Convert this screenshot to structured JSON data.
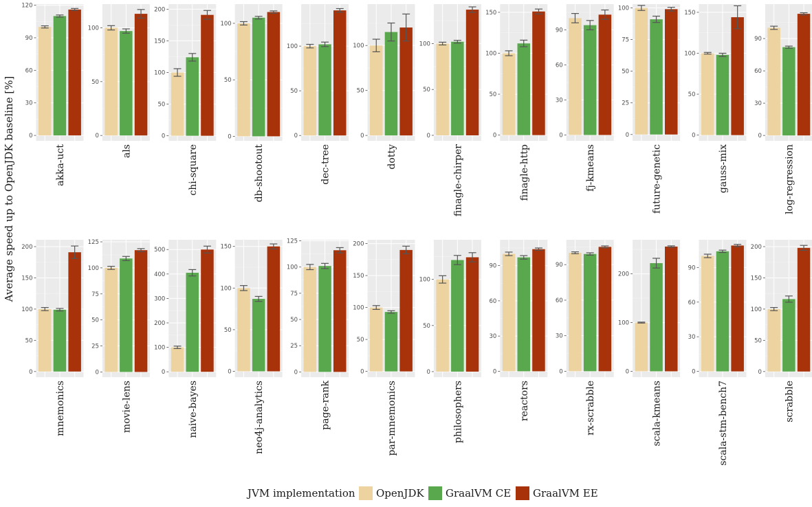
{
  "chart_data": {
    "type": "bar",
    "ylabel": "Average speed up to OpenJDK baseline [%]",
    "series": [
      {
        "name": "OpenJDK",
        "color": "#ecd3a0"
      },
      {
        "name": "GraalVM CE",
        "color": "#5aa84e"
      },
      {
        "name": "GraalVM EE",
        "color": "#a8320a"
      }
    ],
    "legend": {
      "title": "JVM implementation",
      "position": "bottom"
    },
    "grid": true,
    "panels": [
      {
        "name": "akka-uct",
        "ylim": [
          -5,
          121
        ],
        "ticks": [
          0,
          30,
          60,
          90,
          120
        ],
        "values": [
          100,
          110,
          116
        ],
        "errors": [
          1,
          1,
          1
        ]
      },
      {
        "name": "als",
        "ylim": [
          -5,
          122
        ],
        "ticks": [
          0,
          50,
          100
        ],
        "values": [
          100,
          97,
          113
        ],
        "errors": [
          2,
          2,
          4
        ]
      },
      {
        "name": "chi-square",
        "ylim": [
          -8,
          208
        ],
        "ticks": [
          0,
          50,
          100,
          150,
          200
        ],
        "values": [
          100,
          124,
          191
        ],
        "errors": [
          6,
          6,
          7
        ]
      },
      {
        "name": "db-shootout",
        "ylim": [
          -4,
          117
        ],
        "ticks": [
          0,
          50,
          100
        ],
        "values": [
          100,
          105,
          110
        ],
        "errors": [
          1.5,
          1.2,
          1
        ]
      },
      {
        "name": "dec-tree",
        "ylim": [
          -6,
          147
        ],
        "ticks": [
          0,
          50,
          100
        ],
        "values": [
          100,
          102,
          140
        ],
        "errors": [
          2,
          2.5,
          2
        ]
      },
      {
        "name": "dotty",
        "ylim": [
          -6,
          146
        ],
        "ticks": [
          0,
          50,
          100
        ],
        "values": [
          100,
          115,
          120
        ],
        "errors": [
          7,
          10,
          15
        ]
      },
      {
        "name": "finagle-chirper",
        "ylim": [
          -6,
          143
        ],
        "ticks": [
          0,
          50,
          100
        ],
        "values": [
          100,
          102,
          137
        ],
        "errors": [
          1.5,
          1.5,
          3
        ]
      },
      {
        "name": "finagle-http",
        "ylim": [
          -7,
          160
        ],
        "ticks": [
          0,
          50,
          100,
          150
        ],
        "values": [
          100,
          112,
          151
        ],
        "errors": [
          3,
          4,
          3
        ]
      },
      {
        "name": "fj-kmeans",
        "ylim": [
          -5,
          112
        ],
        "ticks": [
          0,
          30,
          60,
          90
        ],
        "values": [
          100,
          94,
          103
        ],
        "errors": [
          4,
          4,
          4
        ]
      },
      {
        "name": "future-genetic",
        "ylim": [
          -5,
          103
        ],
        "ticks": [
          0,
          25,
          50,
          75,
          100
        ],
        "values": [
          100,
          91,
          99
        ],
        "errors": [
          2,
          2.5,
          1.5
        ]
      },
      {
        "name": "gauss-mix",
        "ylim": [
          -7,
          160
        ],
        "ticks": [
          0,
          50,
          100,
          150
        ],
        "values": [
          100,
          98,
          144
        ],
        "errors": [
          1,
          2,
          14
        ]
      },
      {
        "name": "log-regression",
        "ylim": [
          -5,
          122
        ],
        "ticks": [
          0,
          30,
          60,
          90
        ],
        "values": [
          100,
          82,
          113
        ],
        "errors": [
          1.5,
          1,
          1
        ]
      },
      {
        "name": "mnemonics",
        "ylim": [
          -9,
          211
        ],
        "ticks": [
          0,
          50,
          100,
          150,
          200
        ],
        "values": [
          100,
          99,
          191
        ],
        "errors": [
          2.5,
          2,
          10
        ]
      },
      {
        "name": "movie-lens",
        "ylim": [
          -5,
          127
        ],
        "ticks": [
          0,
          25,
          50,
          75,
          100,
          125
        ],
        "values": [
          100,
          109,
          117
        ],
        "errors": [
          1.5,
          2,
          1.5
        ]
      },
      {
        "name": "naive-bayes",
        "ylim": [
          -22,
          540
        ],
        "ticks": [
          0,
          100,
          200,
          300,
          400,
          500
        ],
        "values": [
          100,
          405,
          500
        ],
        "errors": [
          5,
          13,
          14
        ]
      },
      {
        "name": "neo4j-analytics",
        "ylim": [
          -7,
          158
        ],
        "ticks": [
          0,
          50,
          100,
          150
        ],
        "values": [
          100,
          87,
          150
        ],
        "errors": [
          3,
          3,
          3
        ]
      },
      {
        "name": "page-rank",
        "ylim": [
          -5,
          126
        ],
        "ticks": [
          0,
          25,
          50,
          75,
          100,
          125
        ],
        "values": [
          100,
          101,
          116
        ],
        "errors": [
          2.5,
          2.5,
          2.5
        ]
      },
      {
        "name": "par-mnemonics",
        "ylim": [
          -9,
          206
        ],
        "ticks": [
          0,
          50,
          100,
          150,
          200
        ],
        "values": [
          100,
          93,
          190
        ],
        "errors": [
          3,
          2,
          6
        ]
      },
      {
        "name": "philosophers",
        "ylim": [
          -6,
          143
        ],
        "ticks": [
          0,
          50,
          100
        ],
        "values": [
          100,
          121,
          124
        ],
        "errors": [
          4,
          5,
          5
        ]
      },
      {
        "name": "reactors",
        "ylim": [
          -5,
          112
        ],
        "ticks": [
          0,
          30,
          60,
          90
        ],
        "values": [
          100,
          97,
          104
        ],
        "errors": [
          1.5,
          1.5,
          1
        ]
      },
      {
        "name": "rx-scrabble",
        "ylim": [
          -5,
          111
        ],
        "ticks": [
          0,
          30,
          60,
          90
        ],
        "values": [
          100,
          99,
          105
        ],
        "errors": [
          0.8,
          1,
          0.8
        ]
      },
      {
        "name": "scala-kmeans",
        "ylim": [
          -12,
          270
        ],
        "ticks": [
          0,
          100,
          200
        ],
        "values": [
          100,
          222,
          256
        ],
        "errors": [
          1,
          10,
          1.5
        ]
      },
      {
        "name": "scala-stm-bench7",
        "ylim": [
          -5,
          114
        ],
        "ticks": [
          0,
          30,
          60,
          90
        ],
        "values": [
          100,
          104,
          109
        ],
        "errors": [
          1.5,
          1,
          1
        ]
      },
      {
        "name": "scrabble",
        "ylim": [
          -9,
          211
        ],
        "ticks": [
          0,
          50,
          100,
          150,
          200
        ],
        "values": [
          100,
          116,
          198
        ],
        "errors": [
          2.5,
          5,
          4
        ]
      }
    ]
  }
}
